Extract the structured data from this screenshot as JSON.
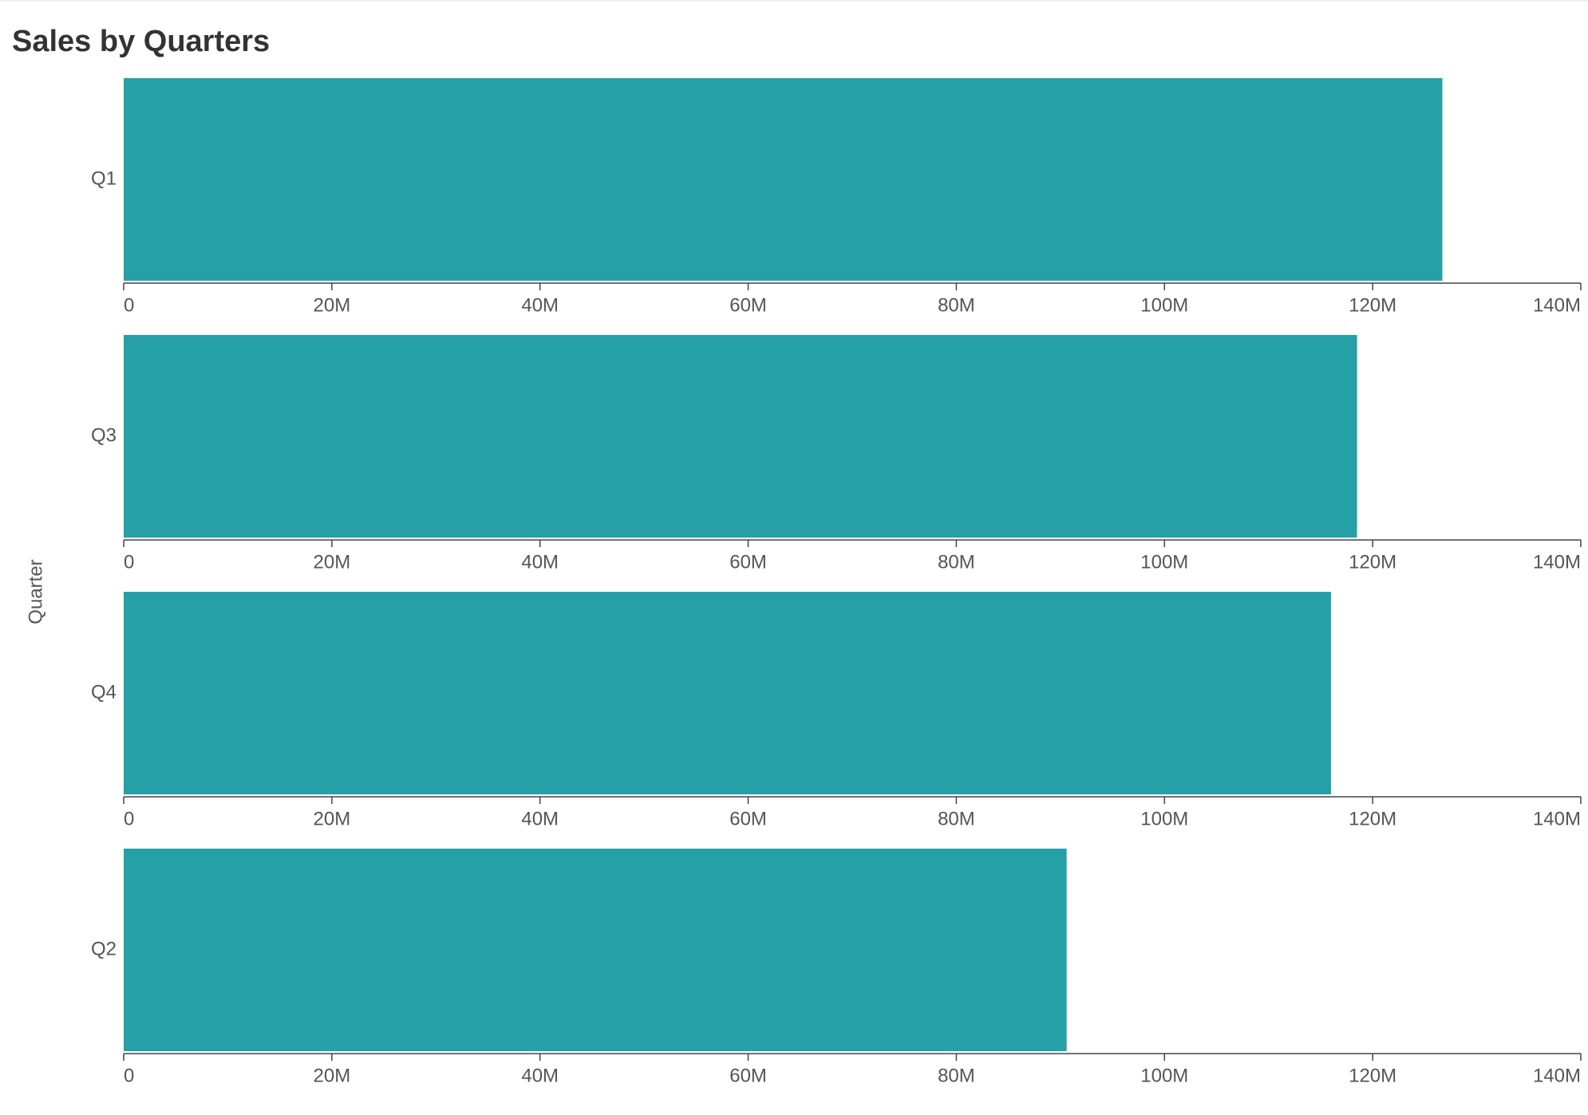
{
  "chart_data": {
    "type": "bar",
    "orientation": "horizontal",
    "title": "Sales by Quarters",
    "y_label": "Quarter",
    "categories": [
      "Q1",
      "Q3",
      "Q4",
      "Q2"
    ],
    "values": [
      126700000,
      118500000,
      116000000,
      90600000
    ],
    "color": "#26a0a7",
    "xlim": [
      0,
      140000000
    ],
    "xticks": [
      0,
      {
        "value": 20000000,
        "label": "20M"
      },
      {
        "value": 40000000,
        "label": "40M"
      },
      {
        "value": 60000000,
        "label": "60M"
      },
      {
        "value": 80000000,
        "label": "80M"
      },
      {
        "value": 100000000,
        "label": "100M"
      },
      {
        "value": 120000000,
        "label": "120M"
      },
      {
        "value": 140000000,
        "label": "140M"
      }
    ],
    "grid": false
  }
}
